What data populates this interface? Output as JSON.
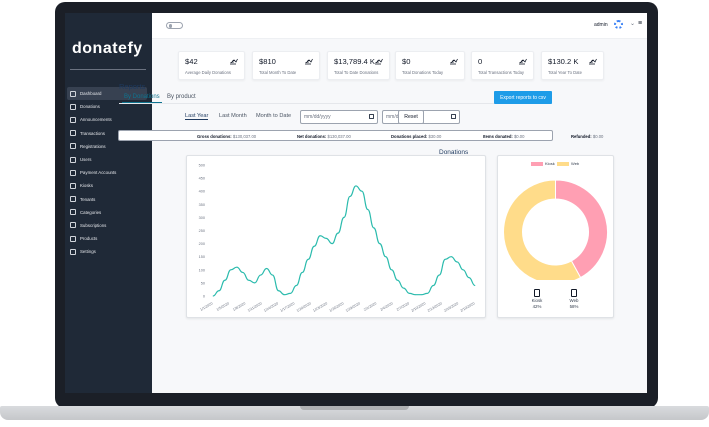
{
  "app": {
    "logo": "donatefy",
    "user": "admin"
  },
  "sidebar": {
    "items": [
      {
        "label": "Dashboard",
        "active": true,
        "icon": "dashboard-icon"
      },
      {
        "label": "Donations",
        "icon": "donations-icon"
      },
      {
        "label": "Announcements",
        "icon": "announcements-icon"
      },
      {
        "label": "Transactions",
        "icon": "transactions-icon"
      },
      {
        "label": "Registrations",
        "icon": "registrations-icon"
      },
      {
        "label": "Users",
        "icon": "users-icon"
      },
      {
        "label": "Payment Accounts",
        "icon": "payment-accounts-icon"
      },
      {
        "label": "Kiosks",
        "icon": "kiosks-icon"
      },
      {
        "label": "Tenants",
        "icon": "tenants-icon"
      },
      {
        "label": "Categories",
        "icon": "categories-icon"
      },
      {
        "label": "Subscriptions",
        "icon": "subscriptions-icon"
      },
      {
        "label": "Products",
        "icon": "products-icon"
      },
      {
        "label": "Settings",
        "icon": "settings-icon"
      }
    ]
  },
  "stats": [
    {
      "value": "$42",
      "label": "Average Daily Donations"
    },
    {
      "value": "$810",
      "label": "Total Month To Date"
    },
    {
      "value": "$13,789.4 K",
      "label": "Total To Date Donations"
    },
    {
      "value": "$0",
      "label": "Total Donations Today"
    },
    {
      "value": "0",
      "label": "Total Transactions Today"
    },
    {
      "value": "$130.2 K",
      "label": "Total Year To Date"
    }
  ],
  "reports": {
    "title": "Reports",
    "tabs": [
      "By Donations",
      "By product"
    ],
    "export_label": "Export reports to csv",
    "ranges": [
      "Last Year",
      "Last Month",
      "Month to Date"
    ],
    "date_placeholder": "mm/dd/yyyy",
    "reset_label": "Reset"
  },
  "summary": [
    {
      "label": "Gross donations:",
      "value": "$130,037.00"
    },
    {
      "label": "Net donations:",
      "value": "$130,037.00"
    },
    {
      "label": "Donations placed:",
      "value": "$30.00"
    },
    {
      "label": "Items donated:",
      "value": "$0.00"
    },
    {
      "label": "Refunded:",
      "value": "$0.00"
    }
  ],
  "colors": {
    "accent": "#1e9ce8",
    "line": "#2bbbad",
    "kiosk": "#ff9fb3",
    "web": "#ffdc8a",
    "sidebar": "#1f2937"
  },
  "chart_data": [
    {
      "type": "line",
      "x": [
        "1/1/2020",
        "1/7/2020",
        "1/8/2020",
        "1/10/2020",
        "1/11/2020",
        "1/12/2020",
        "1/13/2020",
        "1/14/2020",
        "1/15/2020",
        "1/16/2020",
        "1/17/2020",
        "1/18/2020",
        "1/19/2020",
        "1/20/2020",
        "1/21/2020",
        "1/22/2020",
        "1/23/2020",
        "1/24/2020",
        "1/25/2020",
        "1/26/2020",
        "1/27/2020",
        "1/28/2020",
        "1/29/2020",
        "1/30/2020",
        "1/31/2020",
        "2/1/2020",
        "2/2/2020",
        "2/3/2020",
        "2/4/2020",
        "2/5/2020",
        "2/6/2020",
        "2/7/2020",
        "2/8/2020",
        "2/9/2020",
        "2/10/2020",
        "2/11/2020",
        "2/12/2020",
        "2/13/2020",
        "2/14/2020",
        "2/15/2020",
        "2/16/2020",
        "2/17/2020",
        "2/18/2020",
        "2/19/2020",
        "2/20/2020"
      ],
      "x_tick_labels": [
        "1/1/2020",
        "1/5/2020",
        "1/8/2020",
        "1/11/2020",
        "1/14/2020",
        "1/17/2020",
        "1/20/2020",
        "1/23/2020",
        "1/26/2020",
        "1/29/2020",
        "2/1/2020",
        "2/4/2020",
        "2/7/2020",
        "2/10/2020",
        "2/13/2020",
        "2/16/2020",
        "2/19/2020"
      ],
      "yticks": [
        0,
        50,
        100,
        150,
        200,
        250,
        300,
        350,
        400,
        450,
        500
      ],
      "ylim": [
        0,
        500
      ],
      "series": [
        {
          "values": [
            0,
            20,
            60,
            100,
            110,
            90,
            60,
            50,
            80,
            105,
            80,
            20,
            5,
            10,
            40,
            90,
            140,
            190,
            230,
            220,
            200,
            240,
            300,
            380,
            420,
            400,
            330,
            260,
            200,
            150,
            100,
            60,
            30,
            10,
            5,
            5,
            10,
            40,
            80,
            140,
            150,
            130,
            100,
            70,
            40
          ]
        }
      ],
      "grid": false
    },
    {
      "type": "pie",
      "title": "Donations",
      "labels": [
        "Kiosk",
        "Web"
      ],
      "values": [
        42,
        58
      ],
      "value_labels": [
        "42%",
        "58%"
      ],
      "legend": "top",
      "donut": true
    }
  ]
}
